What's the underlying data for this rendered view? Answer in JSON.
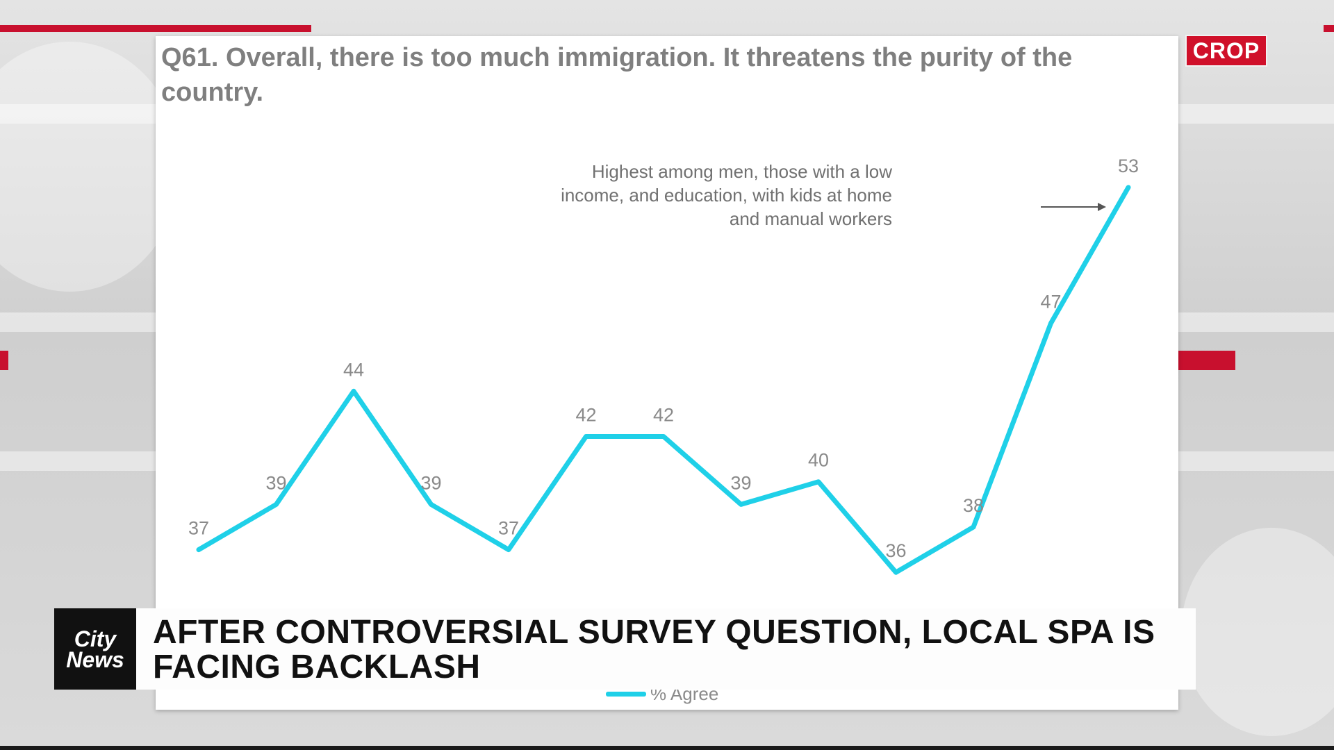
{
  "broadcast": {
    "network_badge": "CROP",
    "logo_line1": "City",
    "logo_line2": "News",
    "headline": "AFTER CONTROVERSIAL SURVEY QUESTION, LOCAL SPA IS FACING BACKLASH"
  },
  "colors": {
    "line": "#1fd0e8",
    "accent_red": "#c8102e",
    "label_gray": "#8a8a8a"
  },
  "chart_data": {
    "type": "line",
    "title": "Q61. Overall, there is too much immigration. It threatens the purity of the country.",
    "annotation": "Highest among men, those with a low income, and education, with kids at home and manual workers",
    "series": [
      {
        "name": "% Agree",
        "values": [
          37,
          39,
          44,
          39,
          37,
          42,
          42,
          39,
          40,
          36,
          38,
          47,
          53
        ]
      }
    ],
    "value_labels": [
      "37",
      "39",
      "44",
      "39",
      "37",
      "42",
      "42",
      "39",
      "40",
      "36",
      "38",
      "47",
      "53"
    ],
    "ylim": [
      33,
      56
    ],
    "grid": false,
    "legend": "bottom"
  }
}
